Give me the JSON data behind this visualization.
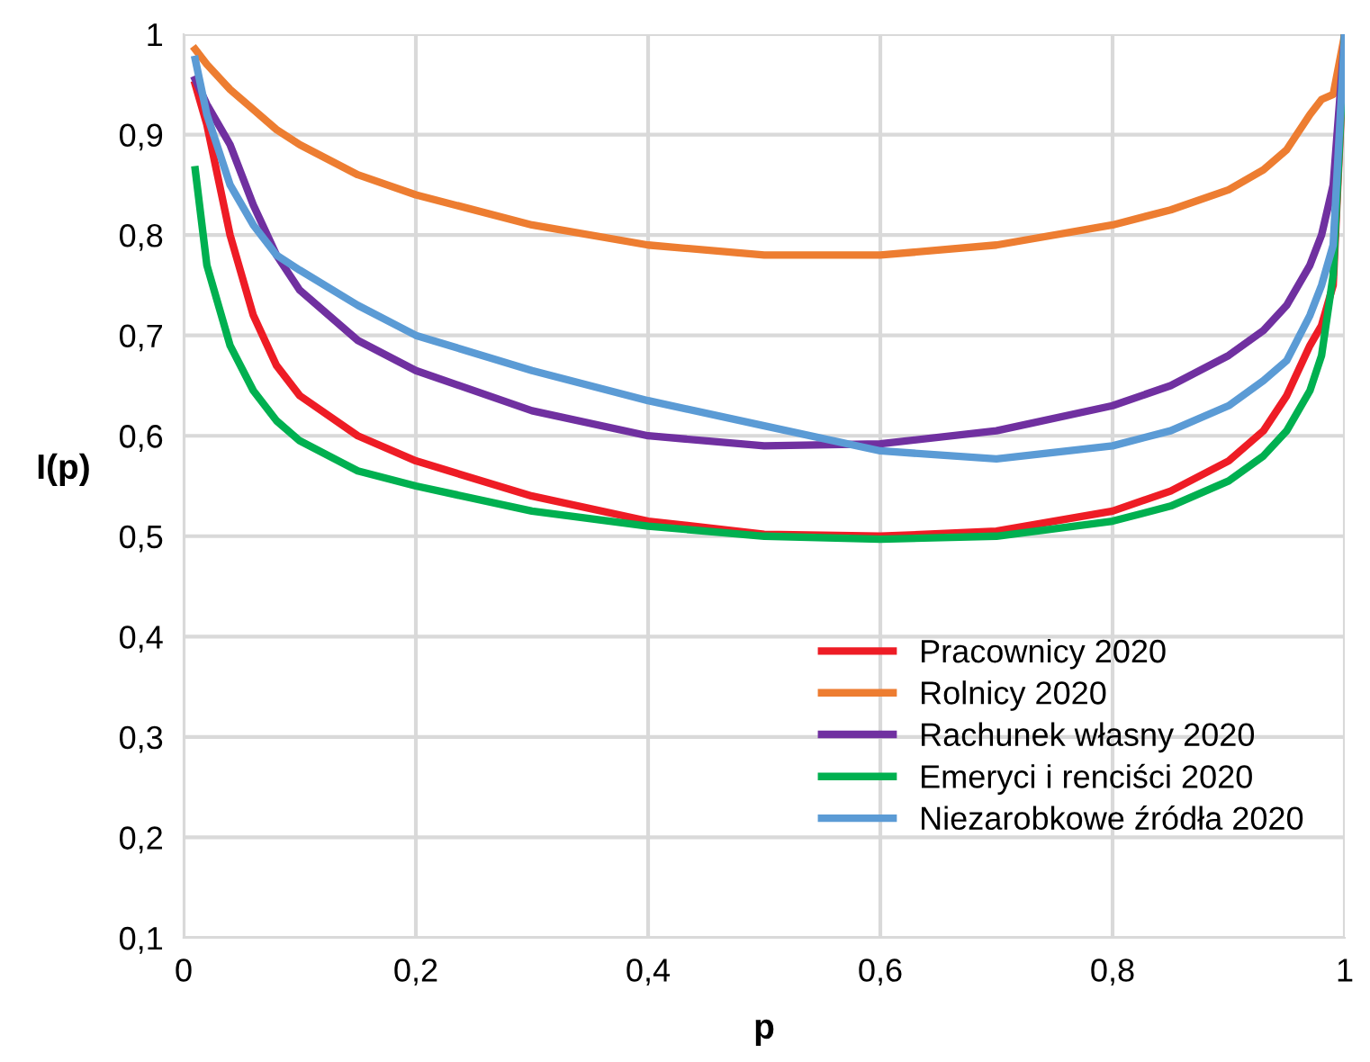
{
  "chart_data": {
    "type": "line",
    "xlabel": "p",
    "ylabel": "I(p)",
    "x": [
      0.01,
      0.02,
      0.04,
      0.06,
      0.08,
      0.1,
      0.15,
      0.2,
      0.3,
      0.4,
      0.5,
      0.6,
      0.7,
      0.8,
      0.85,
      0.9,
      0.93,
      0.95,
      0.97,
      0.98,
      0.99,
      1.0
    ],
    "series": [
      {
        "name": "Pracownicy 2020",
        "color": "#ee1c25",
        "values": [
          0.95,
          0.91,
          0.8,
          0.72,
          0.67,
          0.64,
          0.6,
          0.575,
          0.54,
          0.515,
          0.502,
          0.5,
          0.505,
          0.525,
          0.545,
          0.575,
          0.605,
          0.64,
          0.69,
          0.71,
          0.75,
          1.0
        ]
      },
      {
        "name": "Rolnicy 2020",
        "color": "#ed7d31",
        "values": [
          0.985,
          0.97,
          0.945,
          0.925,
          0.905,
          0.89,
          0.86,
          0.84,
          0.81,
          0.79,
          0.78,
          0.78,
          0.79,
          0.81,
          0.825,
          0.845,
          0.865,
          0.885,
          0.92,
          0.935,
          0.94,
          1.0
        ]
      },
      {
        "name": "Rachunek własny 2020",
        "color": "#7030a0",
        "values": [
          0.955,
          0.93,
          0.89,
          0.83,
          0.78,
          0.745,
          0.695,
          0.665,
          0.625,
          0.6,
          0.59,
          0.592,
          0.605,
          0.63,
          0.65,
          0.68,
          0.705,
          0.73,
          0.77,
          0.8,
          0.85,
          1.0
        ]
      },
      {
        "name": "Emeryci i renciści 2020",
        "color": "#00b050",
        "values": [
          0.865,
          0.77,
          0.69,
          0.645,
          0.615,
          0.595,
          0.565,
          0.55,
          0.525,
          0.51,
          0.5,
          0.497,
          0.5,
          0.515,
          0.53,
          0.555,
          0.58,
          0.605,
          0.645,
          0.68,
          0.76,
          1.0
        ]
      },
      {
        "name": "Niezarobkowe źródła 2020",
        "color": "#5b9bd5",
        "values": [
          0.975,
          0.92,
          0.85,
          0.81,
          0.78,
          0.765,
          0.73,
          0.7,
          0.665,
          0.635,
          0.61,
          0.585,
          0.577,
          0.59,
          0.605,
          0.63,
          0.655,
          0.675,
          0.72,
          0.75,
          0.79,
          1.0
        ]
      }
    ],
    "xlim": [
      0,
      1
    ],
    "xticks": [
      0,
      {
        "value": 0.2,
        "label": "0,2"
      },
      {
        "value": 0.4,
        "label": "0,4"
      },
      {
        "value": 0.6,
        "label": "0,6"
      },
      {
        "value": 0.8,
        "label": "0,8"
      },
      1
    ],
    "ylim": [
      0.1,
      1
    ],
    "yticks": [
      {
        "value": 0.1,
        "label": "0,1"
      },
      {
        "value": 0.2,
        "label": "0,2"
      },
      {
        "value": 0.3,
        "label": "0,3"
      },
      {
        "value": 0.4,
        "label": "0,4"
      },
      {
        "value": 0.5,
        "label": "0,5"
      },
      {
        "value": 0.6,
        "label": "0,6"
      },
      {
        "value": 0.7,
        "label": "0,7"
      },
      {
        "value": 0.8,
        "label": "0,8"
      },
      {
        "value": 0.9,
        "label": "0,9"
      },
      1
    ],
    "grid": true,
    "legend": "bottom right",
    "line_style": "solid"
  }
}
